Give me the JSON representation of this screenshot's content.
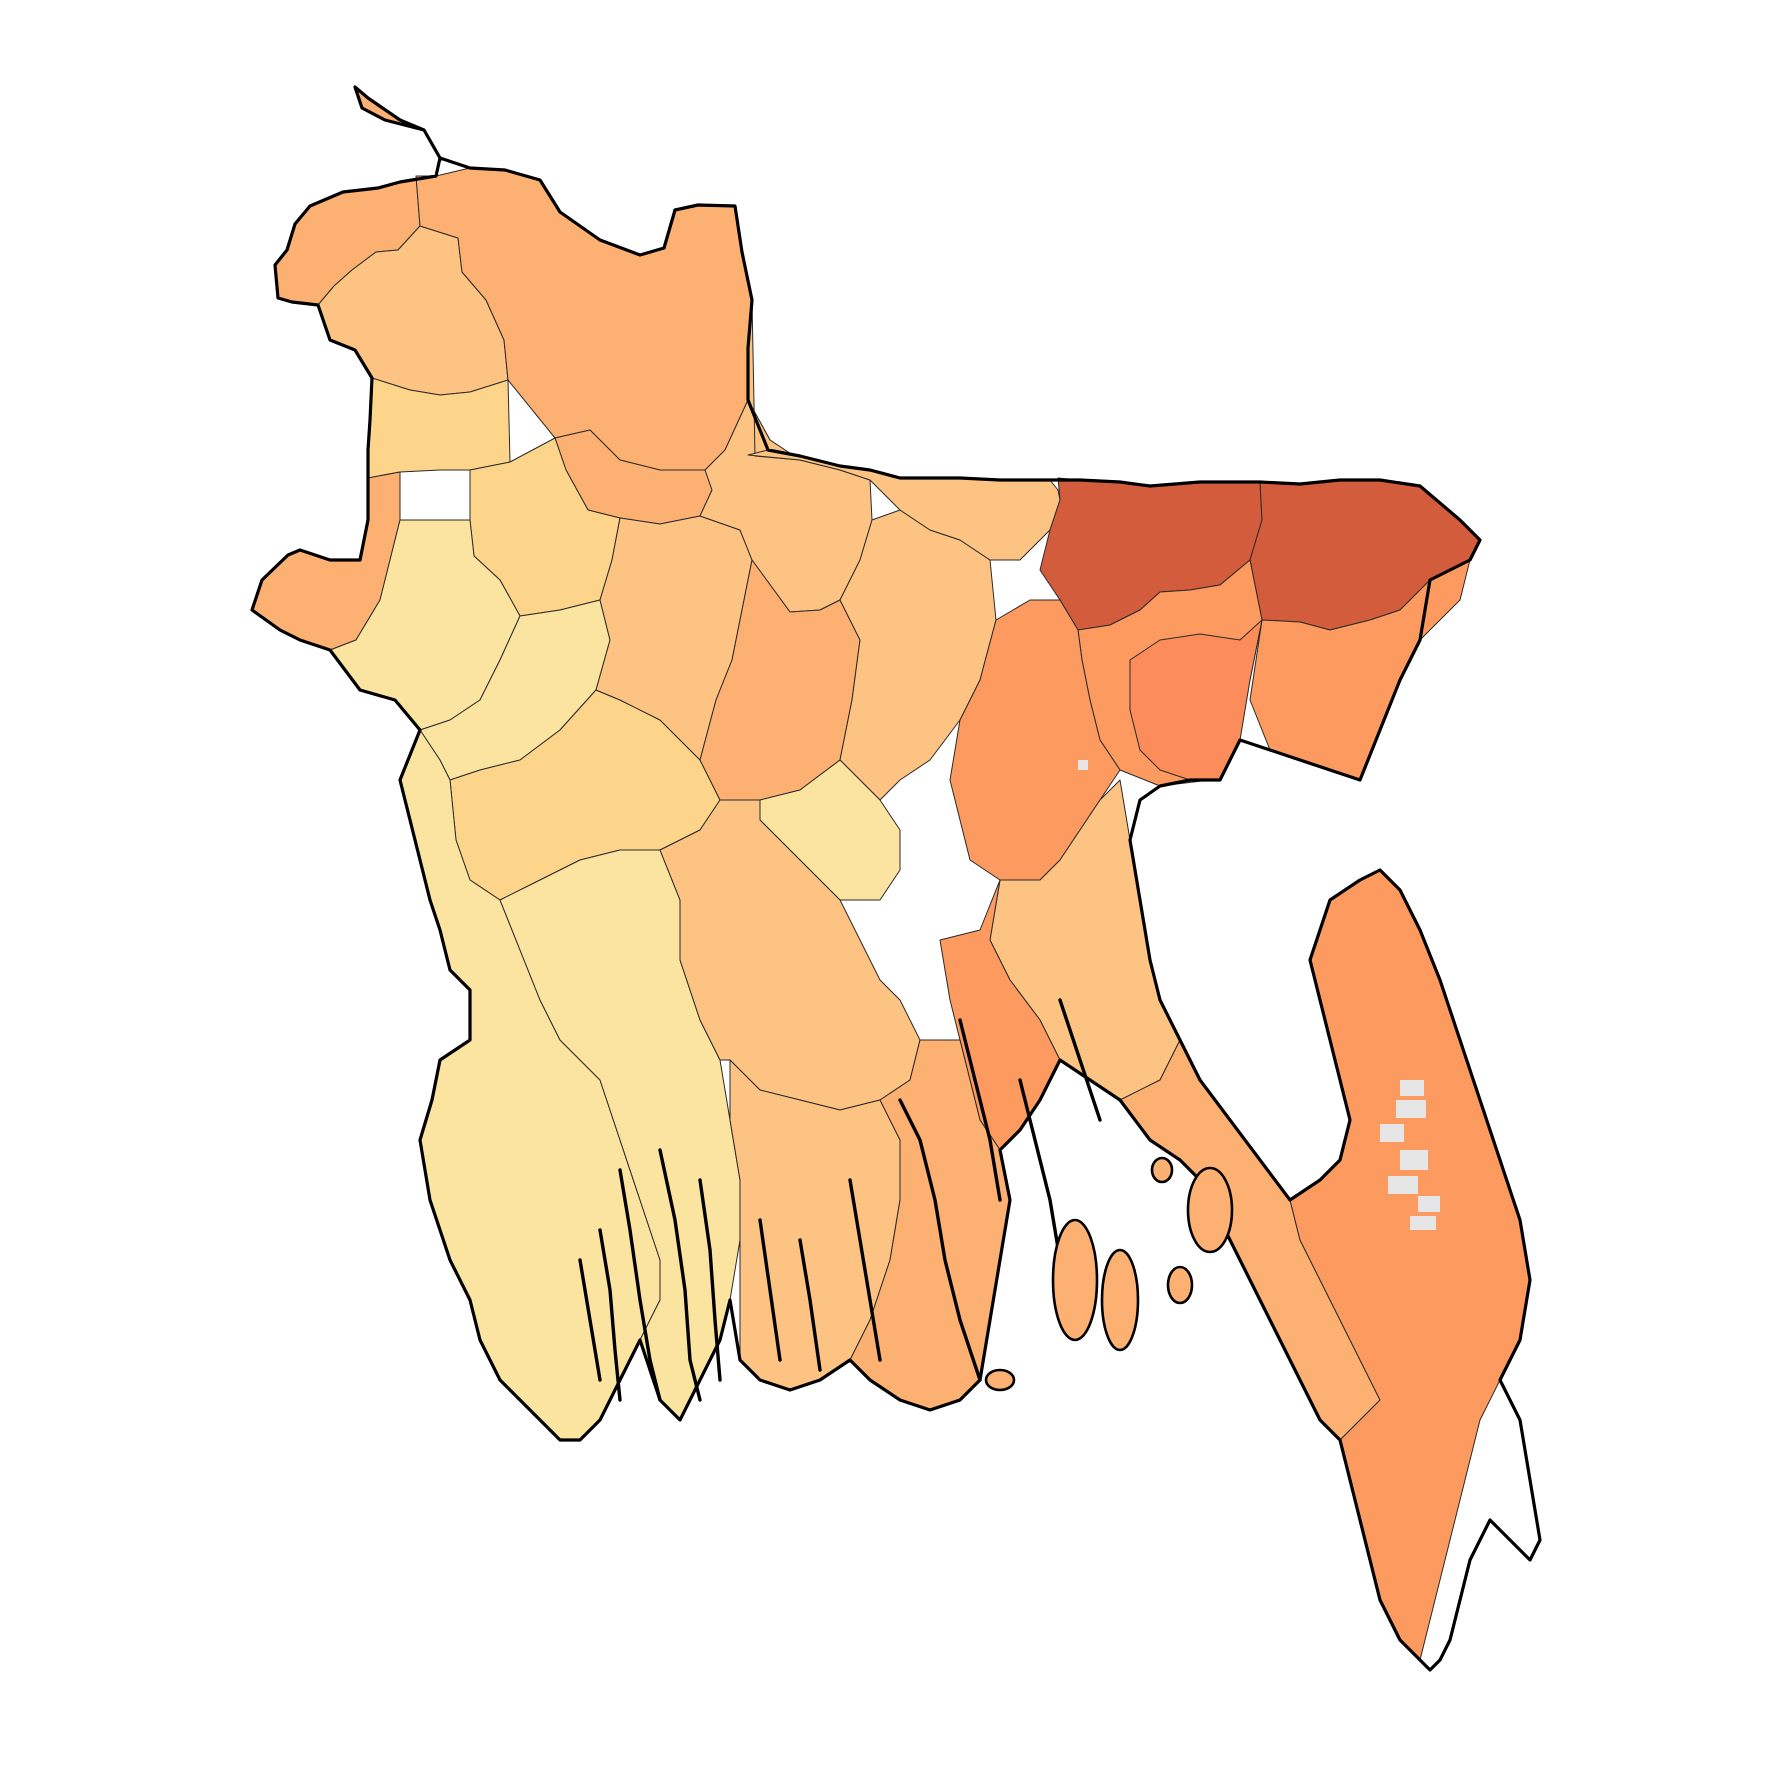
{
  "map": {
    "palette": {
      "pale": "#fbe3a0",
      "light": "#fdd58a",
      "mid": "#fdc383",
      "warm": "#fcb172",
      "orange": "#fd9a5f",
      "deep": "#fc8c59",
      "dark": "#d35c3d",
      "nodata": "#e6e6e6",
      "border": "#000000"
    },
    "regions": [
      {
        "name": "north-1",
        "level": "warm"
      },
      {
        "name": "north-2",
        "level": "mid"
      },
      {
        "name": "north-3",
        "level": "warm"
      },
      {
        "name": "north-4",
        "level": "warm"
      },
      {
        "name": "northwest-1",
        "level": "light"
      },
      {
        "name": "northwest-2",
        "level": "light"
      },
      {
        "name": "northwest-3",
        "level": "warm"
      },
      {
        "name": "west-1",
        "level": "pale"
      },
      {
        "name": "west-2",
        "level": "pale"
      },
      {
        "name": "central-west-1",
        "level": "light"
      },
      {
        "name": "central-west-2",
        "level": "mid"
      },
      {
        "name": "central-1",
        "level": "mid"
      },
      {
        "name": "central-2",
        "level": "warm"
      },
      {
        "name": "central-3",
        "level": "mid"
      },
      {
        "name": "central-4",
        "level": "pale"
      },
      {
        "name": "north-central-1",
        "level": "mid"
      },
      {
        "name": "north-central-2",
        "level": "mid"
      },
      {
        "name": "northeast-1",
        "level": "dark"
      },
      {
        "name": "northeast-2",
        "level": "dark"
      },
      {
        "name": "northeast-3",
        "level": "orange"
      },
      {
        "name": "northeast-4",
        "level": "deep"
      },
      {
        "name": "northeast-5",
        "level": "orange"
      },
      {
        "name": "east-central-1",
        "level": "orange"
      },
      {
        "name": "east-central-2",
        "level": "mid"
      },
      {
        "name": "east-central-3",
        "level": "orange"
      },
      {
        "name": "southwest-1",
        "level": "pale"
      },
      {
        "name": "southwest-2",
        "level": "pale"
      },
      {
        "name": "south-central-1",
        "level": "mid"
      },
      {
        "name": "south-central-2",
        "level": "mid"
      },
      {
        "name": "south-delta",
        "level": "warm"
      },
      {
        "name": "southeast-1",
        "level": "warm"
      },
      {
        "name": "southeast-2",
        "level": "deep"
      },
      {
        "name": "southeast-coast",
        "level": "orange"
      }
    ]
  }
}
